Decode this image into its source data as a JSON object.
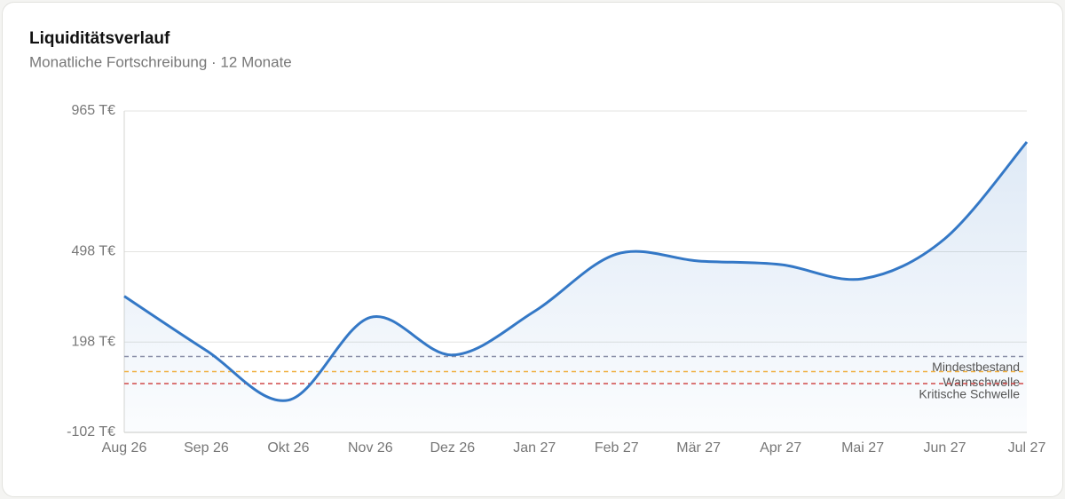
{
  "chart_data": {
    "type": "line",
    "title": "Liquiditätsverlauf",
    "subtitle": "Monatliche Fortschreibung · 12 Monate",
    "categories": [
      "Aug 26",
      "Sep 26",
      "Okt 26",
      "Nov 26",
      "Dez 26",
      "Jan 27",
      "Feb 27",
      "Mär 27",
      "Apr 27",
      "Mai 27",
      "Jun 27",
      "Jul 27"
    ],
    "values": [
      350,
      170,
      5,
      280,
      155,
      300,
      490,
      467,
      455,
      408,
      541,
      862
    ],
    "color": "#3478c6",
    "ylim": [
      -102,
      965
    ],
    "yticks": [
      {
        "value": -102,
        "label": "-102 T€"
      },
      {
        "value": 198,
        "label": "198 T€"
      },
      {
        "value": 498,
        "label": "498 T€"
      },
      {
        "value": 965,
        "label": "965 T€"
      }
    ],
    "grid": true,
    "thresholds": [
      {
        "name": "Mindestbestand",
        "value": 150,
        "color": "#8a8fa8"
      },
      {
        "name": "Warnschwelle",
        "value": 100,
        "color": "#f0b040"
      },
      {
        "name": "Kritische Schwelle",
        "value": 60,
        "color": "#d04a4a"
      }
    ]
  }
}
